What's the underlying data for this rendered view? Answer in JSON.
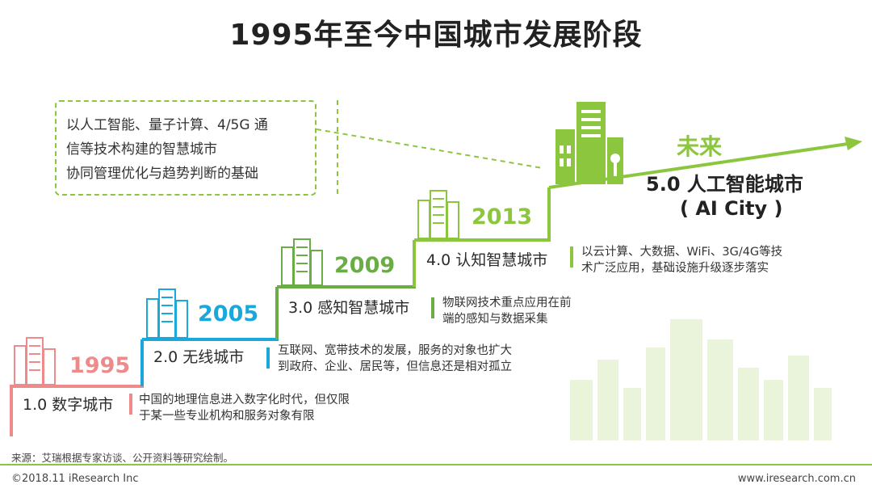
{
  "title": "1995年至今中国城市发展阶段",
  "callout_lines": [
    "以人工智能、量子计算、4/5G 通",
    "信等技术构建的智慧城市",
    "协同管理优化与趋势判断的基础"
  ],
  "stages": [
    {
      "year": "1995",
      "name": "1.0 数字城市",
      "desc": [
        "中国的地理信息进入数字化时代，但仅限",
        "于某一些专业机构和服务对象有限"
      ],
      "color": "#ef8a8a"
    },
    {
      "year": "2005",
      "name": "2.0 无线城市",
      "desc": [
        "互联网、宽带技术的发展，服务的对象也扩大",
        "到政府、企业、居民等，但信息还是相对孤立"
      ],
      "color": "#1aa7d9"
    },
    {
      "year": "2009",
      "name": "3.0 感知智慧城市",
      "desc": [
        "物联网技术重点应用在前",
        "端的感知与数据采集"
      ],
      "color": "#6aac46"
    },
    {
      "year": "2013",
      "name": "4.0 认知智慧城市",
      "desc": [
        "以云计算、大数据、WiFi、3G/4G等技",
        "术广泛应用，基础设施升级逐步落实"
      ],
      "color": "#8cc63f"
    }
  ],
  "future": {
    "label": "未来",
    "name": "5.0 人工智能城市",
    "sub": "( AI City )",
    "color": "#8cc63f"
  },
  "source": "来源：艾瑞根据专家访谈、公开资料等研究绘制。",
  "footer_left": "©2018.11 iResearch Inc",
  "footer_right": "www.iresearch.com.cn"
}
